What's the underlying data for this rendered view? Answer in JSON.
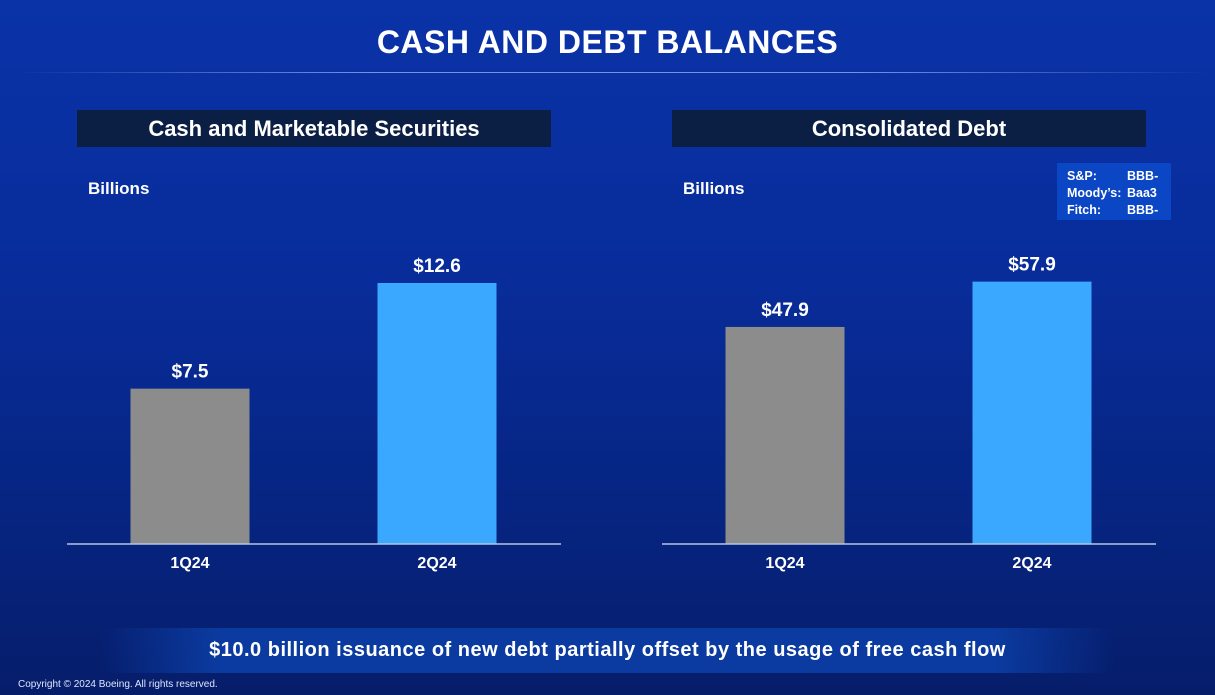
{
  "slide": {
    "title": "CASH AND DEBT BALANCES",
    "banner": "$10.0 billion issuance of new debt partially offset by the usage of free cash flow",
    "copyright": "Copyright © 2024 Boeing. All rights reserved."
  },
  "ratings": [
    {
      "agency": "S&P:",
      "rating": "BBB-"
    },
    {
      "agency": "Moody’s:",
      "rating": "Baa3"
    },
    {
      "agency": "Fitch:",
      "rating": "BBB-"
    }
  ],
  "colors": {
    "bar_prior": "#8c8c8c",
    "bar_current": "#3aa8ff",
    "axis": "#b8c4e0"
  },
  "chart_data": [
    {
      "type": "bar",
      "title": "Cash and Marketable Securities",
      "unit_label": "Billions",
      "categories": [
        "1Q24",
        "2Q24"
      ],
      "values": [
        7.5,
        12.6
      ],
      "data_labels": [
        "$7.5",
        "$12.6"
      ],
      "ylim": [
        0,
        14.0
      ],
      "grid": false,
      "legend": "none"
    },
    {
      "type": "bar",
      "title": "Consolidated Debt",
      "unit_label": "Billions",
      "categories": [
        "1Q24",
        "2Q24"
      ],
      "values": [
        47.9,
        57.9
      ],
      "data_labels": [
        "$47.9",
        "$57.9"
      ],
      "ylim": [
        0,
        64.0
      ],
      "grid": false,
      "legend": "none"
    }
  ]
}
